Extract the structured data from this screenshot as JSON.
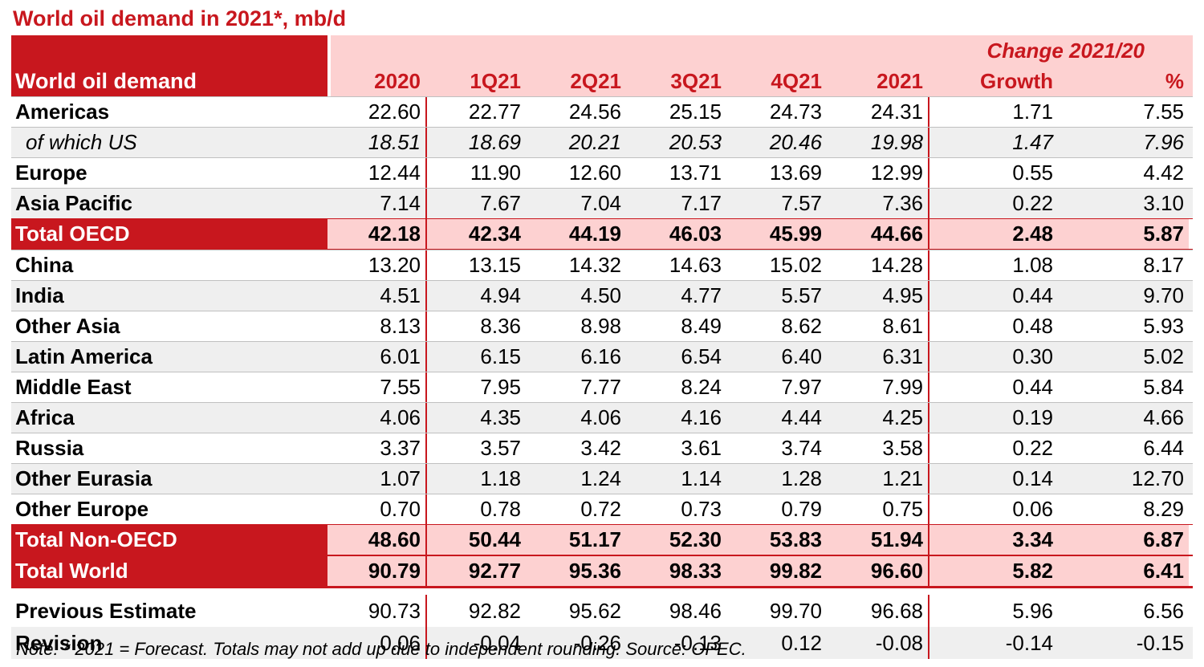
{
  "title": "World oil demand in 2021*, mb/d",
  "header": {
    "label": "World oil demand",
    "change_label": "Change 2021/20",
    "columns": [
      "2020",
      "1Q21",
      "2Q21",
      "3Q21",
      "4Q21",
      "2021",
      "Growth",
      "%"
    ]
  },
  "rows": [
    {
      "label": "Americas",
      "values": [
        "22.60",
        "22.77",
        "24.56",
        "25.15",
        "24.73",
        "24.31",
        "1.71",
        "7.55"
      ]
    },
    {
      "label": "of which US",
      "values": [
        "18.51",
        "18.69",
        "20.21",
        "20.53",
        "20.46",
        "19.98",
        "1.47",
        "7.96"
      ]
    },
    {
      "label": "Europe",
      "values": [
        "12.44",
        "11.90",
        "12.60",
        "13.71",
        "13.69",
        "12.99",
        "0.55",
        "4.42"
      ]
    },
    {
      "label": "Asia Pacific",
      "values": [
        "7.14",
        "7.67",
        "7.04",
        "7.17",
        "7.57",
        "7.36",
        "0.22",
        "3.10"
      ]
    },
    {
      "label": "Total OECD",
      "values": [
        "42.18",
        "42.34",
        "44.19",
        "46.03",
        "45.99",
        "44.66",
        "2.48",
        "5.87"
      ]
    },
    {
      "label": "China",
      "values": [
        "13.20",
        "13.15",
        "14.32",
        "14.63",
        "15.02",
        "14.28",
        "1.08",
        "8.17"
      ]
    },
    {
      "label": "India",
      "values": [
        "4.51",
        "4.94",
        "4.50",
        "4.77",
        "5.57",
        "4.95",
        "0.44",
        "9.70"
      ]
    },
    {
      "label": "Other Asia",
      "values": [
        "8.13",
        "8.36",
        "8.98",
        "8.49",
        "8.62",
        "8.61",
        "0.48",
        "5.93"
      ]
    },
    {
      "label": "Latin America",
      "values": [
        "6.01",
        "6.15",
        "6.16",
        "6.54",
        "6.40",
        "6.31",
        "0.30",
        "5.02"
      ]
    },
    {
      "label": "Middle East",
      "values": [
        "7.55",
        "7.95",
        "7.77",
        "8.24",
        "7.97",
        "7.99",
        "0.44",
        "5.84"
      ]
    },
    {
      "label": "Africa",
      "values": [
        "4.06",
        "4.35",
        "4.06",
        "4.16",
        "4.44",
        "4.25",
        "0.19",
        "4.66"
      ]
    },
    {
      "label": "Russia",
      "values": [
        "3.37",
        "3.57",
        "3.42",
        "3.61",
        "3.74",
        "3.58",
        "0.22",
        "6.44"
      ]
    },
    {
      "label": "Other Eurasia",
      "values": [
        "1.07",
        "1.18",
        "1.24",
        "1.14",
        "1.28",
        "1.21",
        "0.14",
        "12.70"
      ]
    },
    {
      "label": "Other Europe",
      "values": [
        "0.70",
        "0.78",
        "0.72",
        "0.73",
        "0.79",
        "0.75",
        "0.06",
        "8.29"
      ]
    },
    {
      "label": "Total Non-OECD",
      "values": [
        "48.60",
        "50.44",
        "51.17",
        "52.30",
        "53.83",
        "51.94",
        "3.34",
        "6.87"
      ]
    },
    {
      "label": "Total World",
      "values": [
        "90.79",
        "92.77",
        "95.36",
        "98.33",
        "99.82",
        "96.60",
        "5.82",
        "6.41"
      ]
    },
    {
      "label": "Previous Estimate",
      "values": [
        "90.73",
        "92.82",
        "95.62",
        "98.46",
        "99.70",
        "96.68",
        "5.96",
        "6.56"
      ]
    },
    {
      "label": "Revision",
      "values": [
        "0.06",
        "-0.04",
        "-0.26",
        "-0.13",
        "0.12",
        "-0.08",
        "-0.14",
        "-0.15"
      ]
    }
  ],
  "note": "Note: * 2021 = Forecast. Totals may not add up due to independent rounding. Source: OPEC.",
  "colors": {
    "accent": "#c8171e",
    "header_fill": "#fdd1d1",
    "band": "#efefef"
  }
}
